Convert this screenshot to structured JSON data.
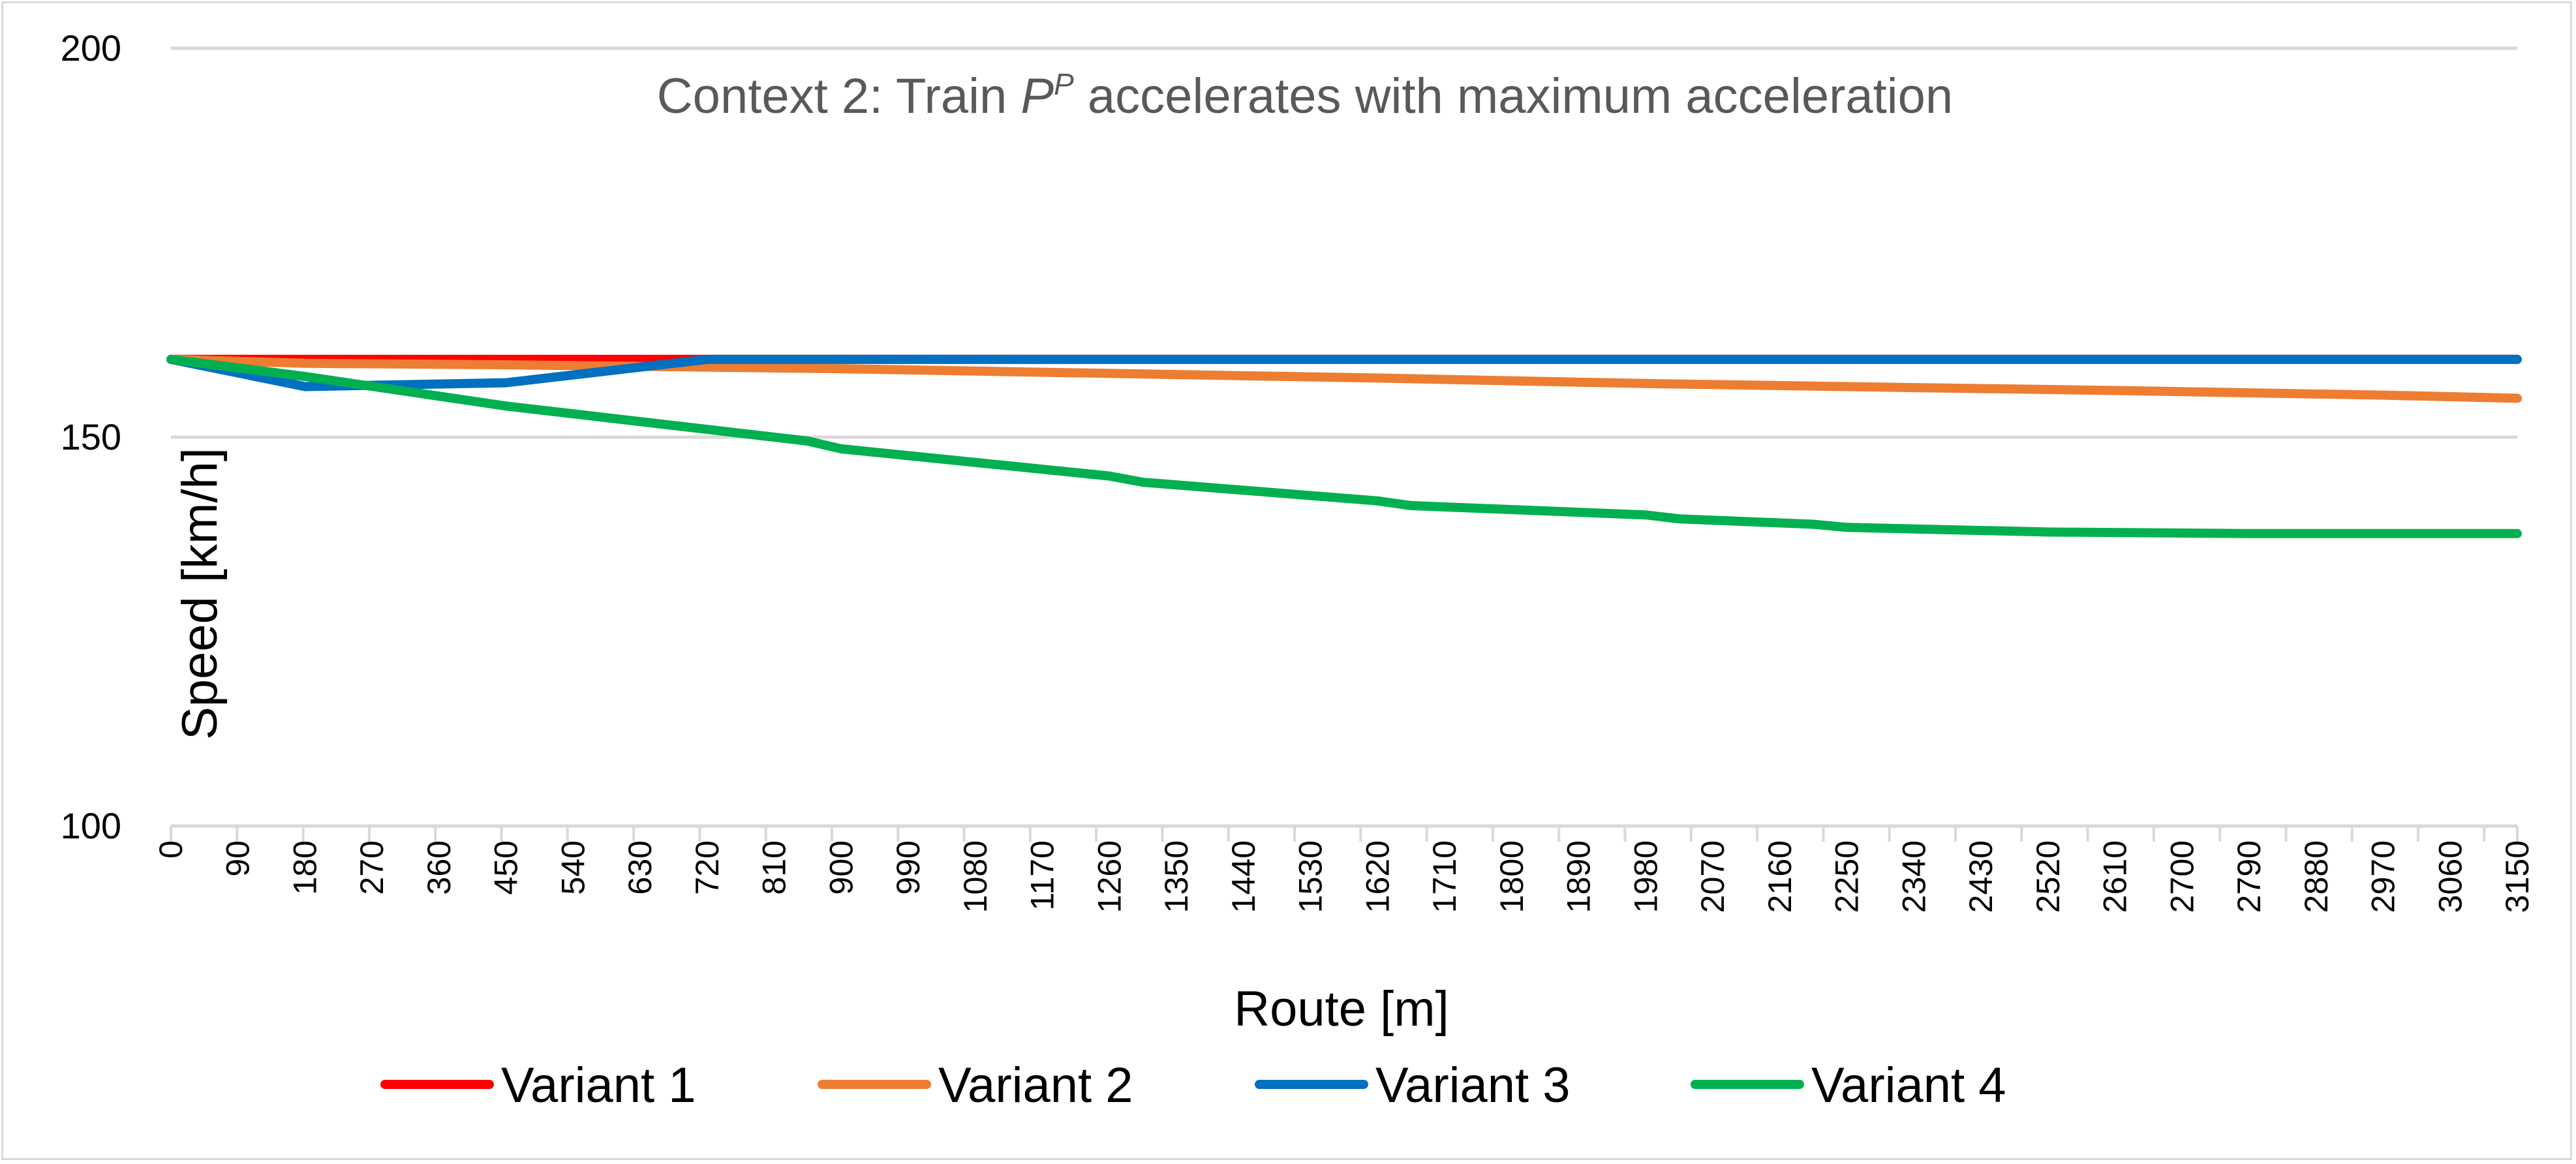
{
  "chart_data": {
    "type": "line",
    "title": {
      "prefix": "Context 2: Train ",
      "italic": "P",
      "superscript": "P",
      "suffix": " accelerates with maximum acceleration"
    },
    "xlabel": "Route [m]",
    "ylabel": "Speed [km/h]",
    "ylim": [
      100,
      200
    ],
    "yticks": [
      "100",
      "150",
      "200"
    ],
    "xlim": [
      0,
      3150
    ],
    "xticks": [
      "0",
      "90",
      "180",
      "270",
      "360",
      "450",
      "540",
      "630",
      "720",
      "810",
      "900",
      "990",
      "1080",
      "1170",
      "1260",
      "1350",
      "1440",
      "1530",
      "1620",
      "1710",
      "1800",
      "1890",
      "1980",
      "2070",
      "2160",
      "2250",
      "2340",
      "2430",
      "2520",
      "2610",
      "2700",
      "2790",
      "2880",
      "2970",
      "3060",
      "3150"
    ],
    "grid": true,
    "legend_position": "bottom",
    "series": [
      {
        "name": "Variant 1",
        "color": "#ff0000",
        "points": [
          [
            0,
            160
          ],
          [
            630,
            160
          ],
          [
            3150,
            160
          ]
        ]
      },
      {
        "name": "Variant 2",
        "color": "#ed7d31",
        "points": [
          [
            0,
            160
          ],
          [
            180,
            159.5
          ],
          [
            450,
            159.3
          ],
          [
            630,
            159.1
          ],
          [
            900,
            158.8
          ],
          [
            1260,
            158.2
          ],
          [
            1620,
            157.6
          ],
          [
            1980,
            156.9
          ],
          [
            2250,
            156.5
          ],
          [
            2610,
            156
          ],
          [
            2970,
            155.4
          ],
          [
            3150,
            155
          ]
        ]
      },
      {
        "name": "Variant 3",
        "color": "#0070c0",
        "points": [
          [
            0,
            160
          ],
          [
            180,
            156.5
          ],
          [
            450,
            157
          ],
          [
            630,
            159
          ],
          [
            720,
            160
          ],
          [
            3150,
            160
          ]
        ]
      },
      {
        "name": "Variant 4",
        "color": "#00b050",
        "points": [
          [
            0,
            160
          ],
          [
            180,
            157.8
          ],
          [
            450,
            154
          ],
          [
            720,
            151
          ],
          [
            855,
            149.5
          ],
          [
            900,
            148.5
          ],
          [
            1260,
            145
          ],
          [
            1305,
            144.2
          ],
          [
            1620,
            141.8
          ],
          [
            1665,
            141.2
          ],
          [
            1980,
            140
          ],
          [
            2025,
            139.5
          ],
          [
            2205,
            138.8
          ],
          [
            2250,
            138.4
          ],
          [
            2520,
            137.8
          ],
          [
            2790,
            137.6
          ],
          [
            3150,
            137.6
          ]
        ]
      }
    ]
  }
}
